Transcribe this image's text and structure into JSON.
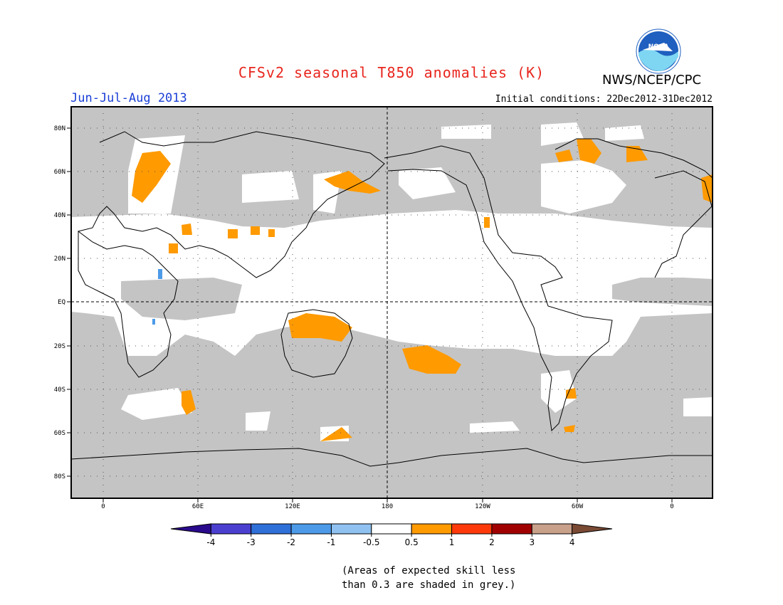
{
  "title": "CFSv2 seasonal T850 anomalies (K)",
  "organization": "NWS/NCEP/CPC",
  "logo_text": "NOAA",
  "season": "Jun-Jul-Aug 2013",
  "initial_conditions": "Initial conditions: 22Dec2012-31Dec2012",
  "lat_labels": [
    "80N",
    "60N",
    "40N",
    "20N",
    "EQ",
    "20S",
    "40S",
    "60S",
    "80S"
  ],
  "lon_labels": [
    "0",
    "60E",
    "120E",
    "180",
    "120W",
    "60W",
    "0"
  ],
  "legend": {
    "tick_labels": [
      "-4",
      "-3",
      "-2",
      "-1",
      "-0.5",
      "0.5",
      "1",
      "2",
      "3",
      "4"
    ],
    "colors": [
      "#2a0a8c",
      "#4a3fcf",
      "#2f6fd8",
      "#4c9ae8",
      "#8fc2f0",
      "#ffffff",
      "#ff9a00",
      "#ff3a0a",
      "#a00000",
      "#c9a08a",
      "#7a4a34"
    ]
  },
  "caption": [
    "(Areas of expected skill less",
    "than 0.3 are shaded in grey.)"
  ],
  "colors": {
    "grey_mask": "#c4c4c4",
    "anomaly_orange": "#ff9a00",
    "anomaly_blue": "#4c9ae8",
    "title_red": "#e8261e",
    "season_blue": "#1a3fd6",
    "noaa_blue": "#1e5fbf"
  }
}
